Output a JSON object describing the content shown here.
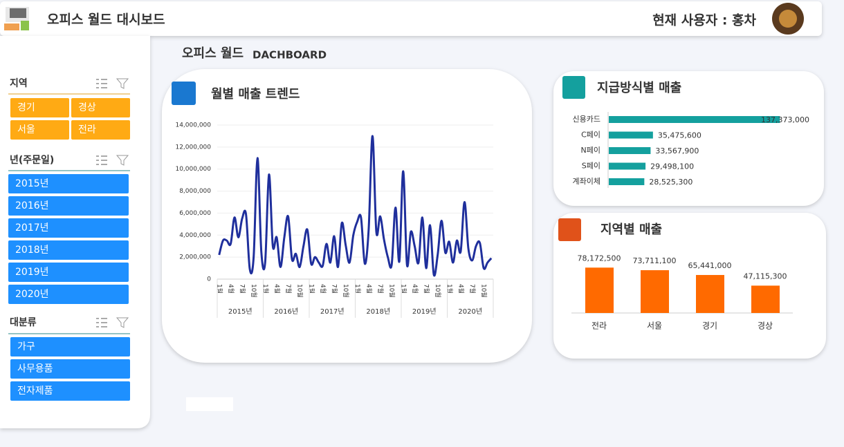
{
  "header": {
    "title": "오피스 월드 대시보드",
    "user": "현재 사용자 : 홍차"
  },
  "page_title": {
    "main": "오피스 월드",
    "sub": "DACHBOARD"
  },
  "slicers": [
    {
      "title": "지역",
      "items": [
        "경기",
        "경상",
        "서울",
        "전라"
      ]
    },
    {
      "title": "년(주문일)",
      "items": [
        "2015년",
        "2016년",
        "2017년",
        "2018년",
        "2019년",
        "2020년"
      ]
    },
    {
      "title": "대분류",
      "items": [
        "가구",
        "사무용품",
        "전자제품"
      ]
    }
  ],
  "chart_data": [
    {
      "type": "line",
      "title": "월별 매출 트렌드",
      "color": "#1f2f9c",
      "categories": [
        "1월",
        null,
        null,
        "4월",
        null,
        null,
        "7월",
        null,
        null,
        "10월",
        null,
        null,
        "1월",
        null,
        null,
        "4월",
        null,
        null,
        "7월",
        null,
        null,
        "10월",
        null,
        null,
        "1월",
        null,
        null,
        "4월",
        null,
        null,
        "7월",
        null,
        null,
        "10월",
        null,
        null,
        "1월",
        null,
        null,
        "4월",
        null,
        null,
        "7월",
        null,
        null,
        "10월",
        null,
        null,
        "1월",
        null,
        null,
        "4월",
        null,
        null,
        "7월",
        null,
        null,
        "10월",
        null,
        null,
        "1월",
        null,
        null,
        "4월",
        null,
        null,
        "7월",
        null,
        null,
        "10월",
        null,
        null
      ],
      "groups": [
        "2015년",
        "2016년",
        "2017년",
        "2018년",
        "2019년",
        "2020년"
      ],
      "values": [
        2200000,
        3500000,
        3500000,
        3200000,
        5600000,
        3800000,
        5500000,
        5900000,
        900000,
        2000000,
        11000000,
        2500000,
        1500000,
        9500000,
        3000000,
        3800000,
        1100000,
        3800000,
        5700000,
        1800000,
        2300000,
        1100000,
        3000000,
        4500000,
        1400000,
        2000000,
        1500000,
        1200000,
        3200000,
        1500000,
        3900000,
        1100000,
        5100000,
        3100000,
        1500000,
        4000000,
        5200000,
        5600000,
        1400000,
        4500000,
        13000000,
        4300000,
        5700000,
        3600000,
        2000000,
        1300000,
        6500000,
        1600000,
        9800000,
        1300000,
        4300000,
        3000000,
        1500000,
        5600000,
        1000000,
        4900000,
        400000,
        2200000,
        5300000,
        2400000,
        3400000,
        1500000,
        3500000,
        2500000,
        7000000,
        2800000,
        1700000,
        3000000,
        3300000,
        1000000,
        1500000,
        1900000
      ],
      "ylim": [
        0,
        14000000
      ],
      "yticks": [
        0,
        {
          "value": 2000000,
          "label": "2,000,000"
        },
        {
          "value": 4000000,
          "label": "4,000,000"
        },
        {
          "value": 6000000,
          "label": "6,000,000"
        },
        {
          "value": 8000000,
          "label": "8,000,000"
        },
        {
          "value": 10000000,
          "label": "10,000,000"
        },
        {
          "value": 12000000,
          "label": "12,000,000"
        },
        {
          "value": 14000000,
          "label": "14,000,000"
        }
      ],
      "grid": true
    },
    {
      "type": "bar",
      "orientation": "horizontal",
      "title": "지급방식별 매출",
      "color": "#14a09e",
      "categories": [
        "신용카드",
        "C페이",
        "N페이",
        "S페이",
        "계좌이체"
      ],
      "values": [
        137373000,
        35475600,
        33567900,
        29498100,
        28525300
      ],
      "value_labels": [
        "137,373,000",
        "35,475,600",
        "33,567,900",
        "29,498,100",
        "28,525,300"
      ],
      "xlim": [
        0,
        150000000
      ]
    },
    {
      "type": "bar",
      "orientation": "vertical",
      "title": "지역별 매출",
      "color": "#ff6a00",
      "categories": [
        "전라",
        "서울",
        "경기",
        "경상"
      ],
      "values": [
        78172500,
        73711100,
        65441000,
        47115300
      ],
      "value_labels": [
        "78,172,500",
        "73,711,100",
        "65,441,000",
        "47,115,300"
      ],
      "ylim": [
        0,
        100000000
      ]
    }
  ]
}
